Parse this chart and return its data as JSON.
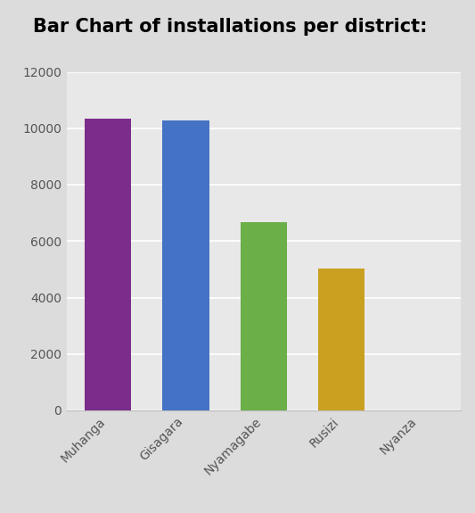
{
  "title": "Bar Chart of installations per district:",
  "categories": [
    "Muhanga",
    "Gisagara",
    "Nyamagabe",
    "Rusizi",
    "Nyanza"
  ],
  "values": [
    10350,
    10280,
    6680,
    5020,
    0
  ],
  "bar_colors": [
    "#7B2D8B",
    "#4472C4",
    "#6AAF47",
    "#C9A020",
    "#888888"
  ],
  "ylim": [
    0,
    12000
  ],
  "yticks": [
    0,
    2000,
    4000,
    6000,
    8000,
    10000,
    12000
  ],
  "figure_bg_color": "#DCDCDC",
  "plot_bg_color": "#E8E8E8",
  "title_fontsize": 15,
  "tick_fontsize": 10,
  "bar_width": 0.6,
  "grid_color": "#FFFFFF",
  "spine_color": "#BBBBBB"
}
